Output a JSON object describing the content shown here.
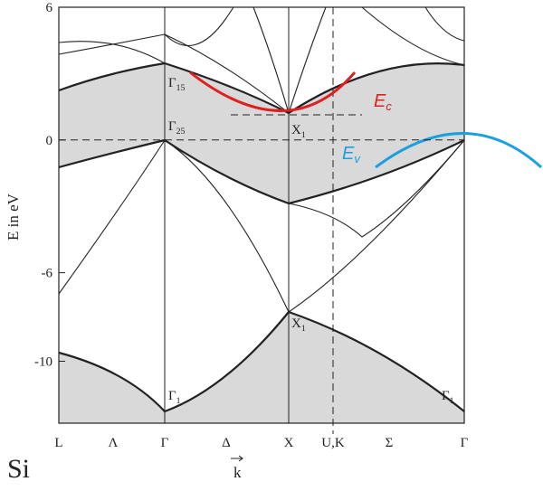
{
  "axis": {
    "label": "E in eV",
    "ylim": [
      -12.8,
      6
    ],
    "yticks": [
      6,
      0,
      -6,
      -10
    ],
    "points": [
      "L",
      "Λ",
      "Γ",
      "Δ",
      "X",
      "U,K",
      "Σ",
      "Γ"
    ],
    "k": "k"
  },
  "material": "Si",
  "labels": [
    {
      "symbol": "Γ",
      "sub": "15"
    },
    {
      "symbol": "Γ",
      "sub": "25"
    },
    {
      "symbol": "X",
      "sub": "1"
    },
    {
      "symbol": "X",
      "sub": "1"
    },
    {
      "symbol": "Γ",
      "sub": "1"
    },
    {
      "symbol": "Γ",
      "sub": "1"
    },
    {
      "symbol": "E",
      "sub": "c"
    },
    {
      "symbol": "E",
      "sub": "v"
    }
  ]
}
